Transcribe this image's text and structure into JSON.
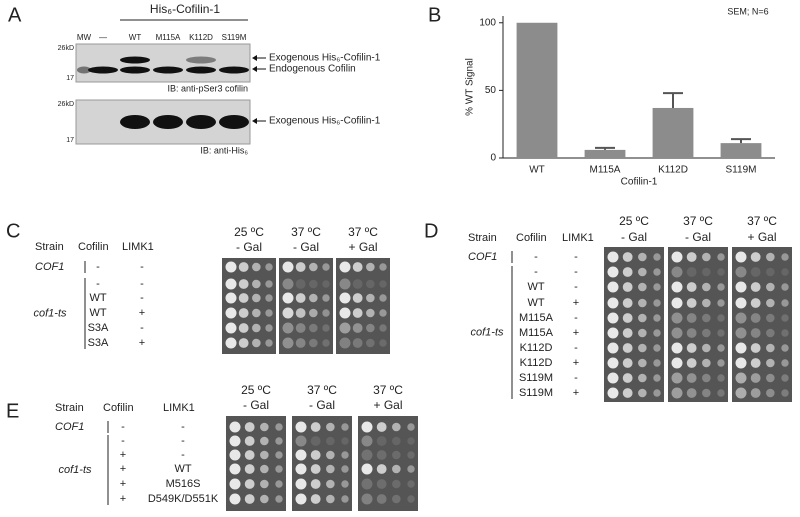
{
  "panels": {
    "A": {
      "letter": "A",
      "construct": "His₆-Cofilin-1",
      "lanes": [
        "MW",
        "—",
        "WT",
        "M115A",
        "K112D",
        "S119M"
      ],
      "blots": [
        {
          "markers": [
            "26kD",
            "17"
          ],
          "arrows": [
            "Exogenous His₆-Cofilin-1",
            "Endogenous Cofilin"
          ],
          "antibody": "IB: anti-pSer3 cofilin"
        },
        {
          "markers": [
            "26kD",
            "17"
          ],
          "arrows": [
            "Exogenous His₆-Cofilin-1"
          ],
          "antibody": "IB: anti-His₆"
        }
      ]
    },
    "C": {
      "letter": "C",
      "headers": [
        "Strain",
        "Cofilin",
        "LIMK1"
      ],
      "conditions": [
        [
          "25 ºC",
          "- Gal"
        ],
        [
          "37 ºC",
          "- Gal"
        ],
        [
          "37 ºC",
          "+ Gal"
        ]
      ],
      "strains": [
        "COF1",
        "cof1-ts"
      ],
      "rows": [
        [
          "-",
          "-"
        ],
        [
          "-",
          "-"
        ],
        [
          "WT",
          "-"
        ],
        [
          "WT",
          "+"
        ],
        [
          "S3A",
          "-"
        ],
        [
          "S3A",
          "+"
        ]
      ]
    },
    "D": {
      "letter": "D",
      "headers": [
        "Strain",
        "Cofilin",
        "LIMK1"
      ],
      "conditions": [
        [
          "25 ºC",
          "- Gal"
        ],
        [
          "37 ºC",
          "- Gal"
        ],
        [
          "37 ºC",
          "+ Gal"
        ]
      ],
      "strains": [
        "COF1",
        "cof1-ts"
      ],
      "rows": [
        [
          "-",
          "-"
        ],
        [
          "-",
          "-"
        ],
        [
          "WT",
          "-"
        ],
        [
          "WT",
          "+"
        ],
        [
          "M115A",
          "-"
        ],
        [
          "M115A",
          "+"
        ],
        [
          "K112D",
          "-"
        ],
        [
          "K112D",
          "+"
        ],
        [
          "S119M",
          "-"
        ],
        [
          "S119M",
          "+"
        ]
      ]
    },
    "E": {
      "letter": "E",
      "headers": [
        "Strain",
        "Cofilin",
        "LIMK1"
      ],
      "conditions": [
        [
          "25 ºC",
          "- Gal"
        ],
        [
          "37 ºC",
          "- Gal"
        ],
        [
          "37 ºC",
          "+ Gal"
        ]
      ],
      "strains": [
        "COF1",
        "cof1-ts"
      ],
      "rows": [
        [
          "-",
          "-"
        ],
        [
          "-",
          "-"
        ],
        [
          "+",
          "-"
        ],
        [
          "+",
          "WT"
        ],
        [
          "+",
          "M516S"
        ],
        [
          "+",
          "D549K/D551K"
        ]
      ]
    }
  },
  "chart_data": {
    "type": "bar",
    "letter": "B",
    "annotation": "SEM; N=6",
    "xlabel": "Cofilin-1",
    "ylabel": "% WT Signal",
    "categories": [
      "WT",
      "M115A",
      "K112D",
      "S119M"
    ],
    "values": [
      100,
      6,
      37,
      11
    ],
    "errors": [
      null,
      1.5,
      11,
      3
    ],
    "color": "#8c8c8c",
    "ylim": [
      0,
      105
    ],
    "yticks": [
      0,
      50,
      100
    ]
  }
}
